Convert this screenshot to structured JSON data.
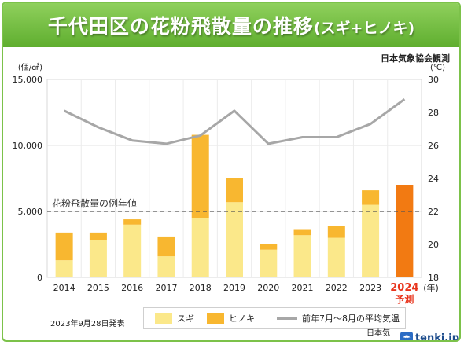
{
  "title": {
    "main": "千代田区の花粉飛散量の推移",
    "sub": "(スギ+ヒノキ)"
  },
  "source": "日本気象協会観測",
  "footer": {
    "date": "2023年9月28日発表",
    "credit": "日本気象協会",
    "logo": "tenki.jp",
    "logo_icon": "umbrella-icon"
  },
  "colors": {
    "sugi": "#fbe88a",
    "hinoki": "#f8b730",
    "forecast": "#f27a12",
    "temperature": "#a7a7a7",
    "forecast_label": "#e8341c",
    "title_bar": "#6cba3a"
  },
  "chart_data": {
    "type": "bar",
    "stacked": true,
    "categories": [
      "2014",
      "2015",
      "2016",
      "2017",
      "2018",
      "2019",
      "2020",
      "2021",
      "2022",
      "2023",
      "2024"
    ],
    "forecast_category": {
      "year": "2024",
      "label": "予測"
    },
    "x_unit": "(年)",
    "series": [
      {
        "name": "スギ",
        "values": [
          1300,
          2800,
          4000,
          1600,
          4500,
          5700,
          2100,
          3200,
          3000,
          5500,
          null
        ]
      },
      {
        "name": "ヒノキ",
        "values": [
          2100,
          600,
          400,
          1500,
          6300,
          1800,
          400,
          400,
          900,
          1100,
          null
        ]
      }
    ],
    "forecast_total": 7000,
    "left_axis": {
      "unit": "(個/㎠)",
      "ylim": [
        0,
        15000
      ],
      "ticks": [
        "0",
        "5,000",
        "10,000",
        "15,000"
      ]
    },
    "right_axis": {
      "unit": "(℃)",
      "ylim": [
        18,
        30
      ],
      "ticks": [
        "18",
        "20",
        "22",
        "24",
        "26",
        "28",
        "30"
      ]
    },
    "temperature_line": {
      "name": "前年7月～8月の平均気温",
      "values": [
        28.1,
        27.1,
        26.3,
        26.1,
        26.6,
        28.1,
        26.1,
        26.5,
        26.5,
        27.3,
        28.8
      ]
    },
    "reference_line": {
      "label": "花粉飛散量の例年値",
      "value": 5000
    },
    "grid": true,
    "legend": "bottom"
  }
}
